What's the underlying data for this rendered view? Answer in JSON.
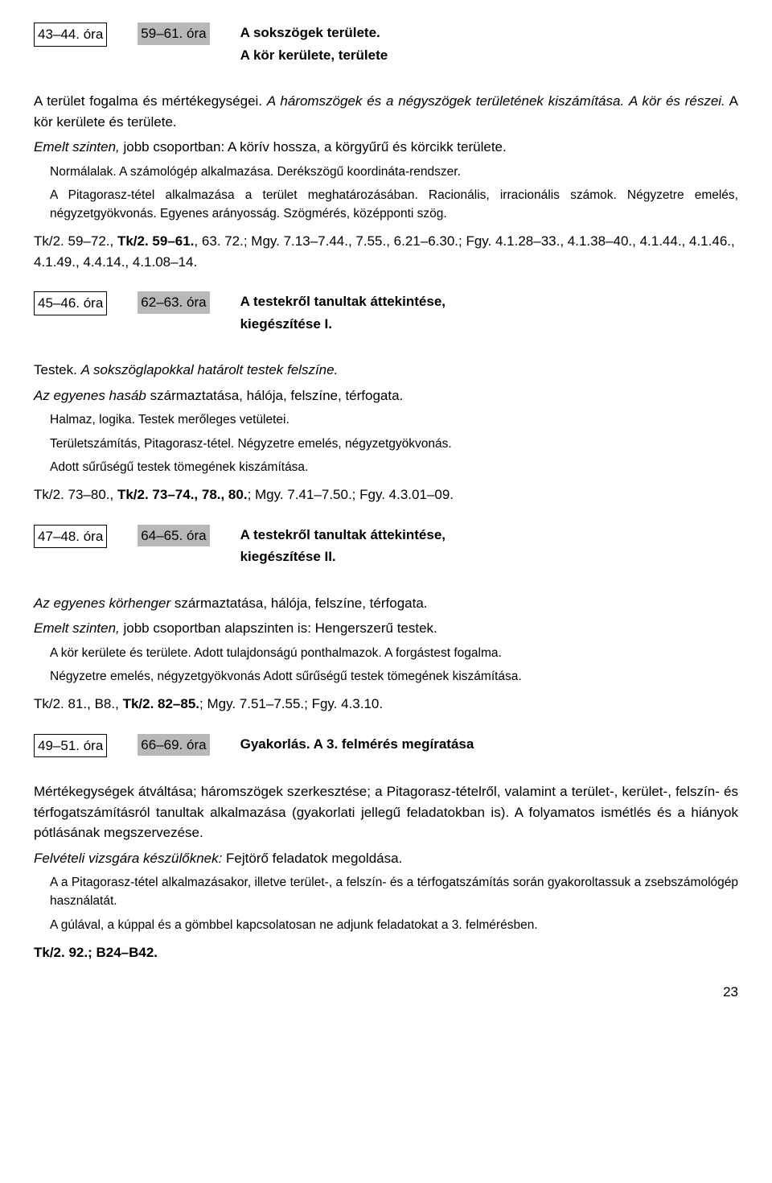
{
  "sections": [
    {
      "boxed": "43–44. óra",
      "shaded": "59–61. óra",
      "titleLines": [
        "A sokszögek területe.",
        "A kör kerülete, területe"
      ],
      "body": [
        {
          "cls": "body-para",
          "html": "A terület fogalma és mértékegységei. <span class='italic'>A háromszögek és a négyszögek területének kiszámítása.</span> <span class='italic'>A kör és részei.</span> A kör kerülete és területe."
        },
        {
          "cls": "body-para",
          "html": "<span class='italic'>Emelt szinten,</span> jobb csoportban: A körív hossza, a körgyűrű és körcikk területe."
        }
      ],
      "indented": [
        {
          "cls": "body-para small",
          "html": "Normálalak. A számológép alkalmazása. Derékszögű koordináta-rendszer."
        },
        {
          "cls": "body-para small",
          "html": "A Pitagorasz-tétel alkalmazása a terület meghatározásában. Racionális, irracionális számok. Négyzetre emelés, négyzetgyökvonás. Egyenes arányosság. Szögmérés, középponti szög."
        }
      ],
      "refs": "Tk/2. 59–72., <b>Tk/2. 59–61.</b>, 63. 72.;  Mgy. 7.13–7.44., 7.55., 6.21–6.30.;  Fgy. 4.1.28–33., 4.1.38–40., 4.1.44., 4.1.46., 4.1.49., 4.4.14., 4.1.08–14."
    },
    {
      "boxed": "45–46. óra",
      "shaded": "62–63. óra",
      "titleLines": [
        "A testekről tanultak áttekintése,",
        "kiegészítése I."
      ],
      "body": [
        {
          "cls": "body-para",
          "html": "Testek. <span class='italic'>A sokszöglapokkal határolt testek felszíne.</span>"
        },
        {
          "cls": "body-para",
          "html": "<span class='italic'>Az egyenes hasáb</span> származtatása, hálója, felszíne, térfogata."
        }
      ],
      "indented": [
        {
          "cls": "body-para small",
          "html": "Halmaz, logika. Testek merőleges vetületei."
        },
        {
          "cls": "body-para small",
          "html": "Területszámítás, Pitagorasz-tétel. Négyzetre emelés, négyzetgyökvonás."
        },
        {
          "cls": "body-para small",
          "html": "Adott sűrűségű testek tömegének kiszámítása."
        }
      ],
      "refs": "Tk/2. 73–80., <b>Tk/2. 73–74., 78., 80.</b>;  Mgy. 7.41–7.50.;  Fgy. 4.3.01–09."
    },
    {
      "boxed": "47–48. óra",
      "shaded": "64–65. óra",
      "titleLines": [
        "A testekről tanultak áttekintése,",
        "kiegészítése II."
      ],
      "body": [
        {
          "cls": "body-para",
          "html": "<span class='italic'>Az egyenes körhenger</span> származtatása, hálója, felszíne, térfogata."
        },
        {
          "cls": "body-para",
          "html": "<span class='italic'>Emelt szinten,</span> jobb csoportban alapszinten is: Hengerszerű testek."
        }
      ],
      "indented": [
        {
          "cls": "body-para small",
          "html": "A kör kerülete és területe. Adott tulajdonságú ponthalmazok. A forgástest fogalma."
        },
        {
          "cls": "body-para small",
          "html": "Négyzetre emelés, négyzetgyökvonás Adott sűrűségű testek tömegének kiszámítása."
        }
      ],
      "refs": "Tk/2. 81., B8., <b>Tk/2. 82–85.</b>;  Mgy. 7.51–7.55.;  Fgy. 4.3.10."
    },
    {
      "boxed": "49–51. óra",
      "shaded": "66–69. óra",
      "titleLines": [
        "Gyakorlás. A 3. felmérés megíratása"
      ],
      "body": [
        {
          "cls": "body-para",
          "html": "Mértékegységek átváltása; háromszögek szerkesztése; a Pitagorasz-tételről, valamint a terület-, kerület-, felszín- és térfogatszámításról tanultak alkalmazása (gyakorlati jellegű feladatokban is). A folyamatos ismétlés és a hiányok pótlásának megszervezése."
        },
        {
          "cls": "body-para",
          "html": "<span class='italic'>Felvételi vizsgára készülőknek:</span> Fejtörő feladatok megoldása."
        }
      ],
      "indented": [
        {
          "cls": "body-para small",
          "html": "A a Pitagorasz-tétel alkalmazásakor, illetve terület-, a felszín- és a térfogatszámítás során gyakoroltassuk a zsebszámológép használatát."
        },
        {
          "cls": "body-para small",
          "html": "A gúlával, a kúppal és a gömbbel kapcsolatosan ne adjunk feladatokat a 3. felmérésben."
        }
      ],
      "refs": "<b>Tk/2. 92.; B24–B42.</b>"
    }
  ],
  "pageNumber": "23"
}
